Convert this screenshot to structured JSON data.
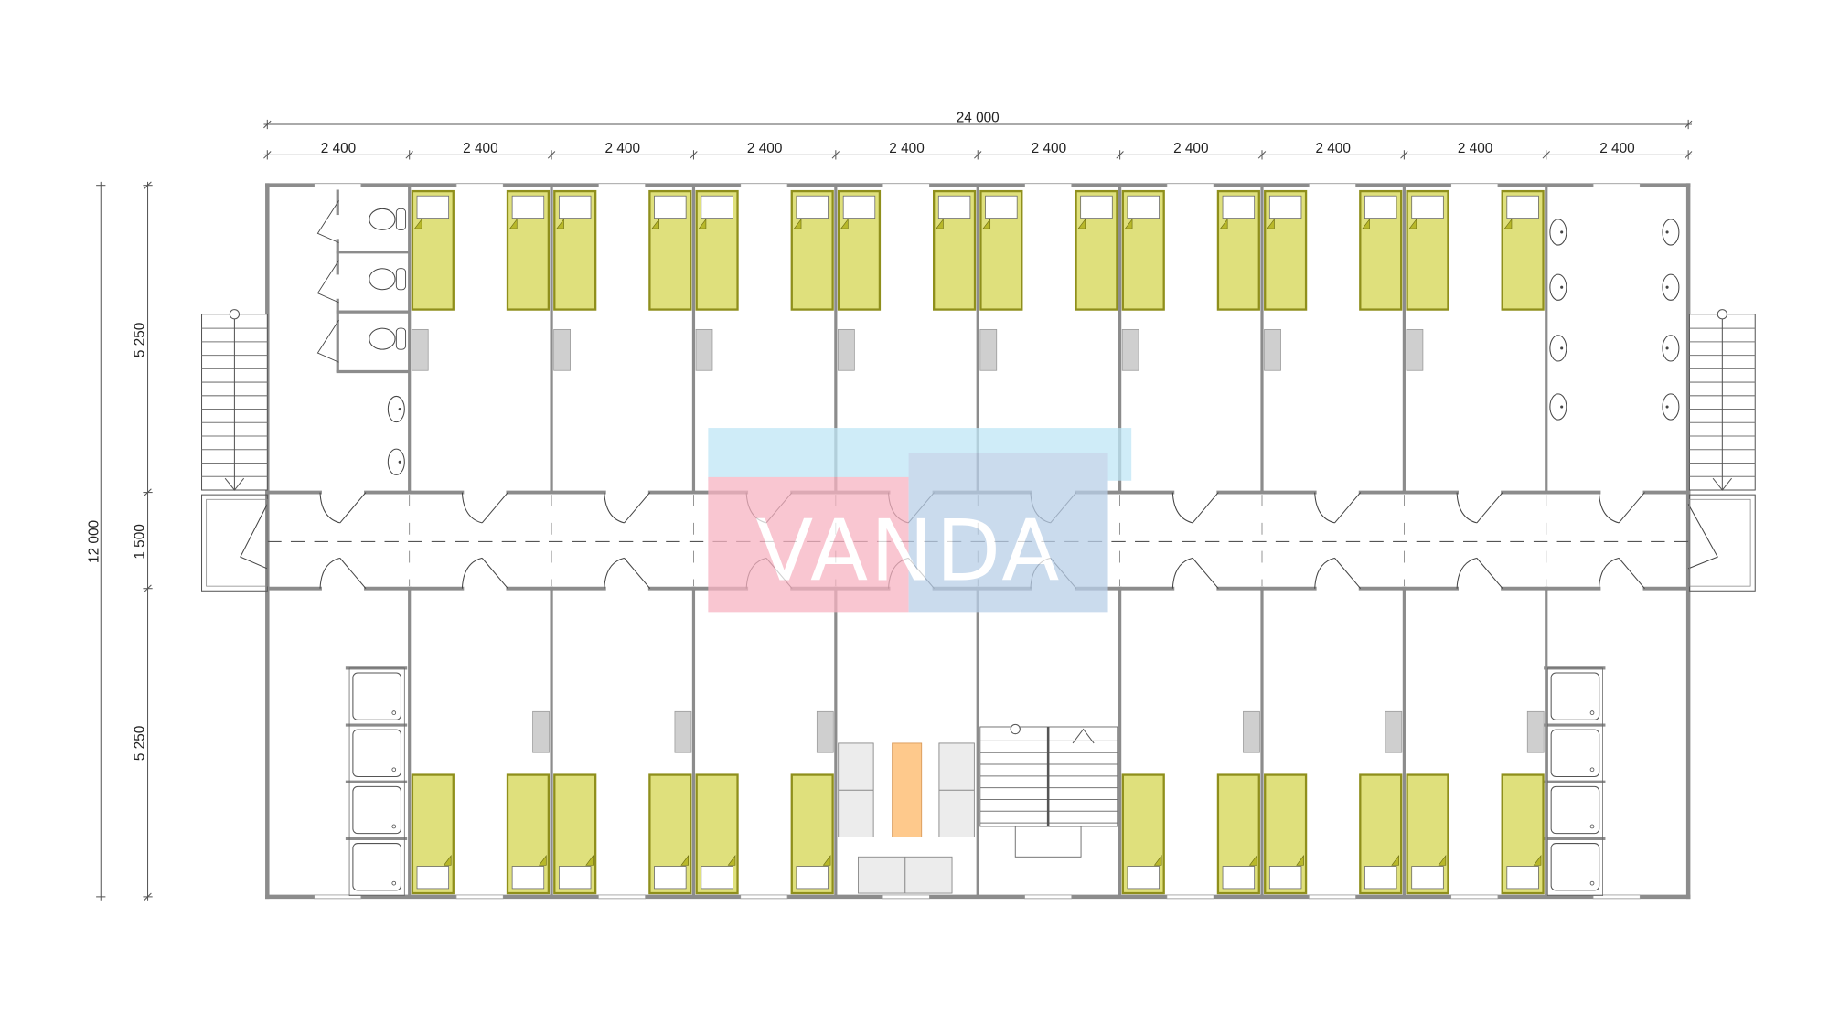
{
  "dimensions": {
    "overall_width": "24 000",
    "module_widths": [
      "2 400",
      "2 400",
      "2 400",
      "2 400",
      "2 400",
      "2 400",
      "2 400",
      "2 400",
      "2 400",
      "2 400"
    ],
    "overall_depth": "12 000",
    "depth_segments": [
      "5 250",
      "1 500",
      "5 250"
    ]
  },
  "rooms": {
    "top_row": [
      "toilets",
      "bedroom",
      "bedroom",
      "bedroom",
      "bedroom",
      "bedroom",
      "bedroom",
      "bedroom",
      "bedroom",
      "washroom"
    ],
    "bottom_row": [
      "showers",
      "bedroom",
      "bedroom",
      "bedroom",
      "lounge",
      "staircase",
      "bedroom",
      "bedroom",
      "bedroom",
      "showers"
    ]
  },
  "watermark": {
    "text": "VANDA"
  },
  "colors": {
    "wall": "#8c8c8c",
    "bed_fill": "#dfe07c",
    "bed_stroke": "#8f8f1c",
    "desk": "#cfcfcf",
    "table": "#fec98c",
    "watermark_pink": "#f7b3c2",
    "watermark_blue": "#b9cfe8",
    "watermark_sky": "#bfe6f6"
  }
}
